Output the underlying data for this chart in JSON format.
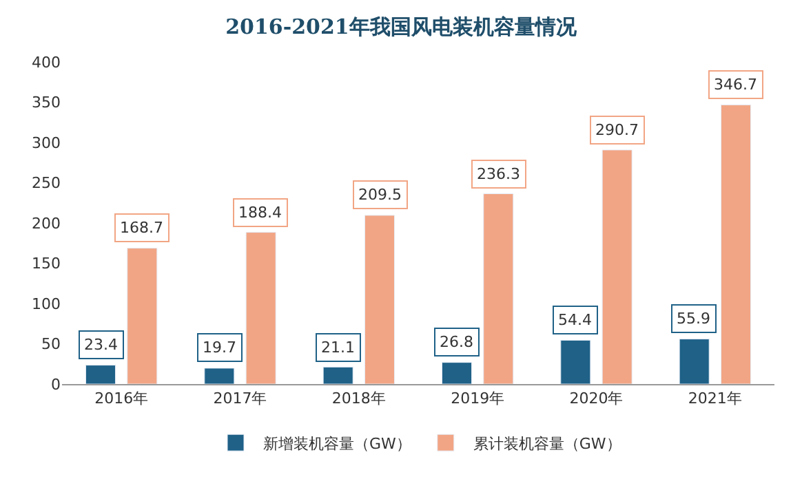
{
  "chart_data": {
    "type": "bar",
    "title": "2016-2021年我国风电装机容量情况",
    "categories": [
      "2016年",
      "2017年",
      "2018年",
      "2019年",
      "2020年",
      "2021年"
    ],
    "series": [
      {
        "name": "新增装机容量（GW）",
        "color": "#1f6187",
        "values": [
          23.4,
          19.7,
          21.1,
          26.8,
          54.4,
          55.9
        ]
      },
      {
        "name": "累计装机容量（GW）",
        "color": "#f2a584",
        "values": [
          168.7,
          188.4,
          209.5,
          236.3,
          290.7,
          346.7
        ]
      }
    ],
    "ylim": [
      0,
      400
    ],
    "yticks": [
      0,
      50,
      100,
      150,
      200,
      250,
      300,
      350,
      400
    ],
    "data_labels": true,
    "legend": "bottom"
  }
}
